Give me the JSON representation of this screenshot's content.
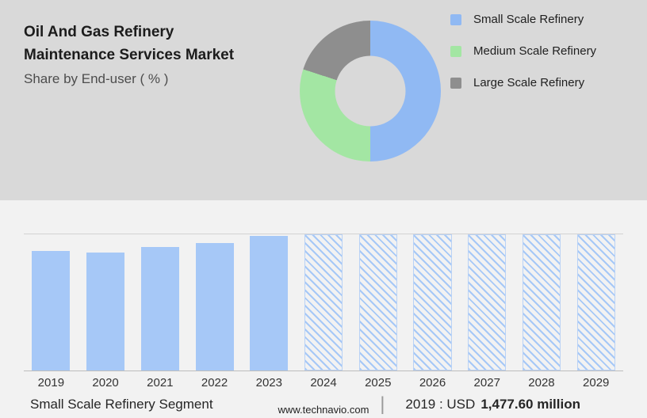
{
  "header": {
    "title_line1": "Oil And Gas Refinery",
    "title_line2": "Maintenance Services Market",
    "subtitle": "Share by End-user ( % )"
  },
  "chart_data": [
    {
      "type": "pie",
      "donut": true,
      "title": "Share by End-user ( % )",
      "labels": [
        "Small Scale Refinery",
        "Medium Scale Refinery",
        "Large Scale Refinery"
      ],
      "values": [
        50,
        30,
        20
      ],
      "colors": [
        "#90B9F3",
        "#A3E6A3",
        "#8E8E8E"
      ],
      "legend_position": "right"
    },
    {
      "type": "bar",
      "categories": [
        "2019",
        "2020",
        "2021",
        "2022",
        "2023",
        "2024",
        "2025",
        "2026",
        "2027",
        "2028",
        "2029"
      ],
      "values": [
        1477.6,
        1460,
        1525,
        1570,
        1660,
        1680,
        1680,
        1680,
        1680,
        1680,
        1680
      ],
      "forecast": [
        false,
        false,
        false,
        false,
        false,
        true,
        true,
        true,
        true,
        true,
        true
      ],
      "bar_color": "#A6C8F7",
      "ylim": [
        0,
        1680
      ],
      "xlabel": "",
      "ylabel": "",
      "grid": "top-and-baseline"
    }
  ],
  "footer": {
    "segment_label": "Small Scale Refinery Segment",
    "divider": "|",
    "value_prefix": "2019 : USD",
    "value_bold": "1,477.60 million",
    "website": "www.technavio.com"
  }
}
